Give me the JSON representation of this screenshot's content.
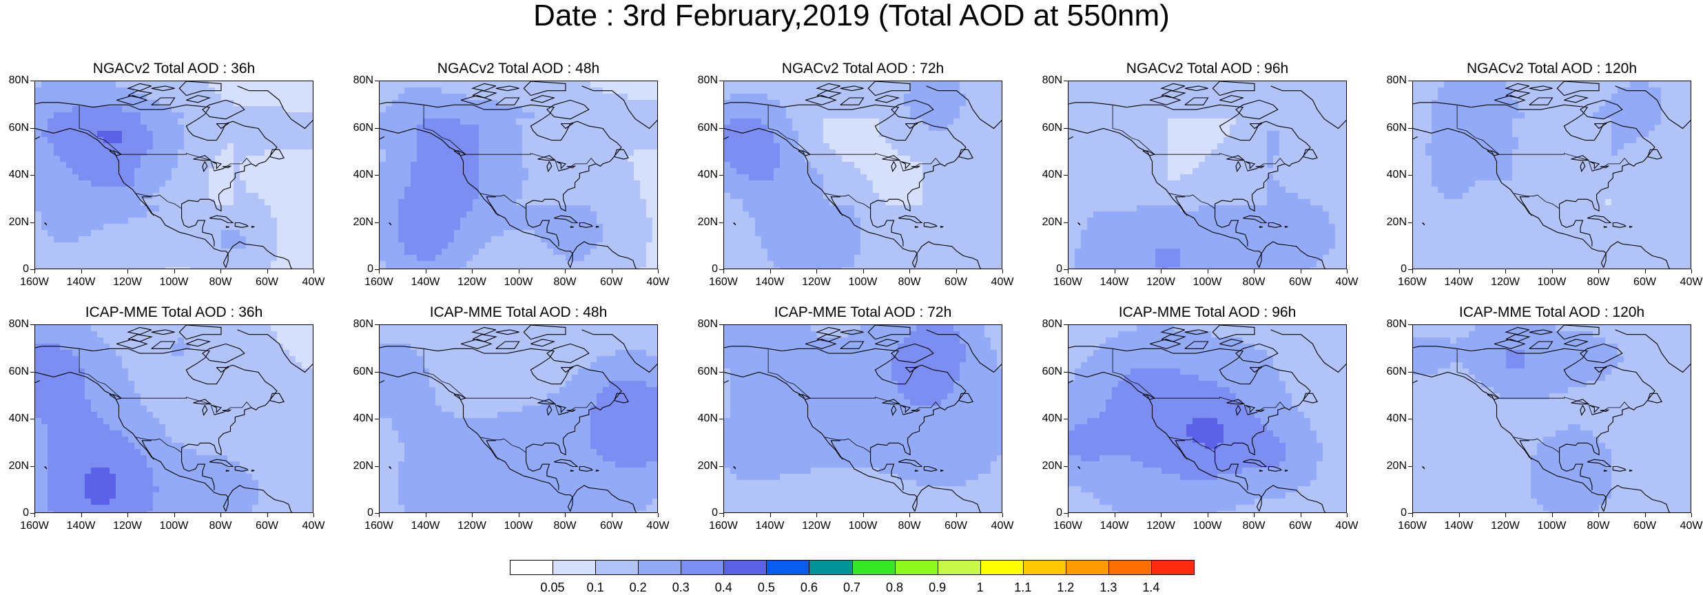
{
  "title": "Date : 3rd February,2019 (Total AOD at 550nm)",
  "lat_labels": [
    "80N",
    "60N",
    "40N",
    "20N",
    "0"
  ],
  "lon_labels": [
    "160W",
    "140W",
    "120W",
    "100W",
    "80W",
    "60W",
    "40W"
  ],
  "panels": [
    {
      "title": "NGACv2 Total AOD : 36h",
      "field": "ngac36"
    },
    {
      "title": "NGACv2 Total AOD : 48h",
      "field": "ngac48"
    },
    {
      "title": "NGACv2 Total AOD : 72h",
      "field": "ngac72"
    },
    {
      "title": "NGACv2 Total AOD : 96h",
      "field": "ngac96"
    },
    {
      "title": "NGACv2 Total AOD : 120h",
      "field": "ngac120"
    },
    {
      "title": "ICAP-MME Total AOD : 36h",
      "field": "icap36"
    },
    {
      "title": "ICAP-MME Total AOD : 48h",
      "field": "icap48"
    },
    {
      "title": "ICAP-MME Total AOD : 72h",
      "field": "icap72"
    },
    {
      "title": "ICAP-MME Total AOD : 96h",
      "field": "icap96"
    },
    {
      "title": "ICAP-MME Total AOD : 120h",
      "field": "icap120"
    }
  ],
  "colorbar": {
    "labels": [
      "0.05",
      "0.1",
      "0.2",
      "0.3",
      "0.4",
      "0.5",
      "0.6",
      "0.7",
      "0.8",
      "0.9",
      "1",
      "1.1",
      "1.2",
      "1.3",
      "1.4"
    ],
    "colors": [
      "#ffffff",
      "#d6dffb",
      "#b2c3f7",
      "#93abf6",
      "#7c8ef1",
      "#5c62e8",
      "#0a5cf0",
      "#00949a",
      "#36e826",
      "#8ff81e",
      "#c8f84a",
      "#ffff00",
      "#ffc800",
      "#ff9a00",
      "#ff6e00",
      "#ff2a10"
    ]
  },
  "style": {
    "coast_color": "#000000",
    "border_color": "#000000"
  }
}
